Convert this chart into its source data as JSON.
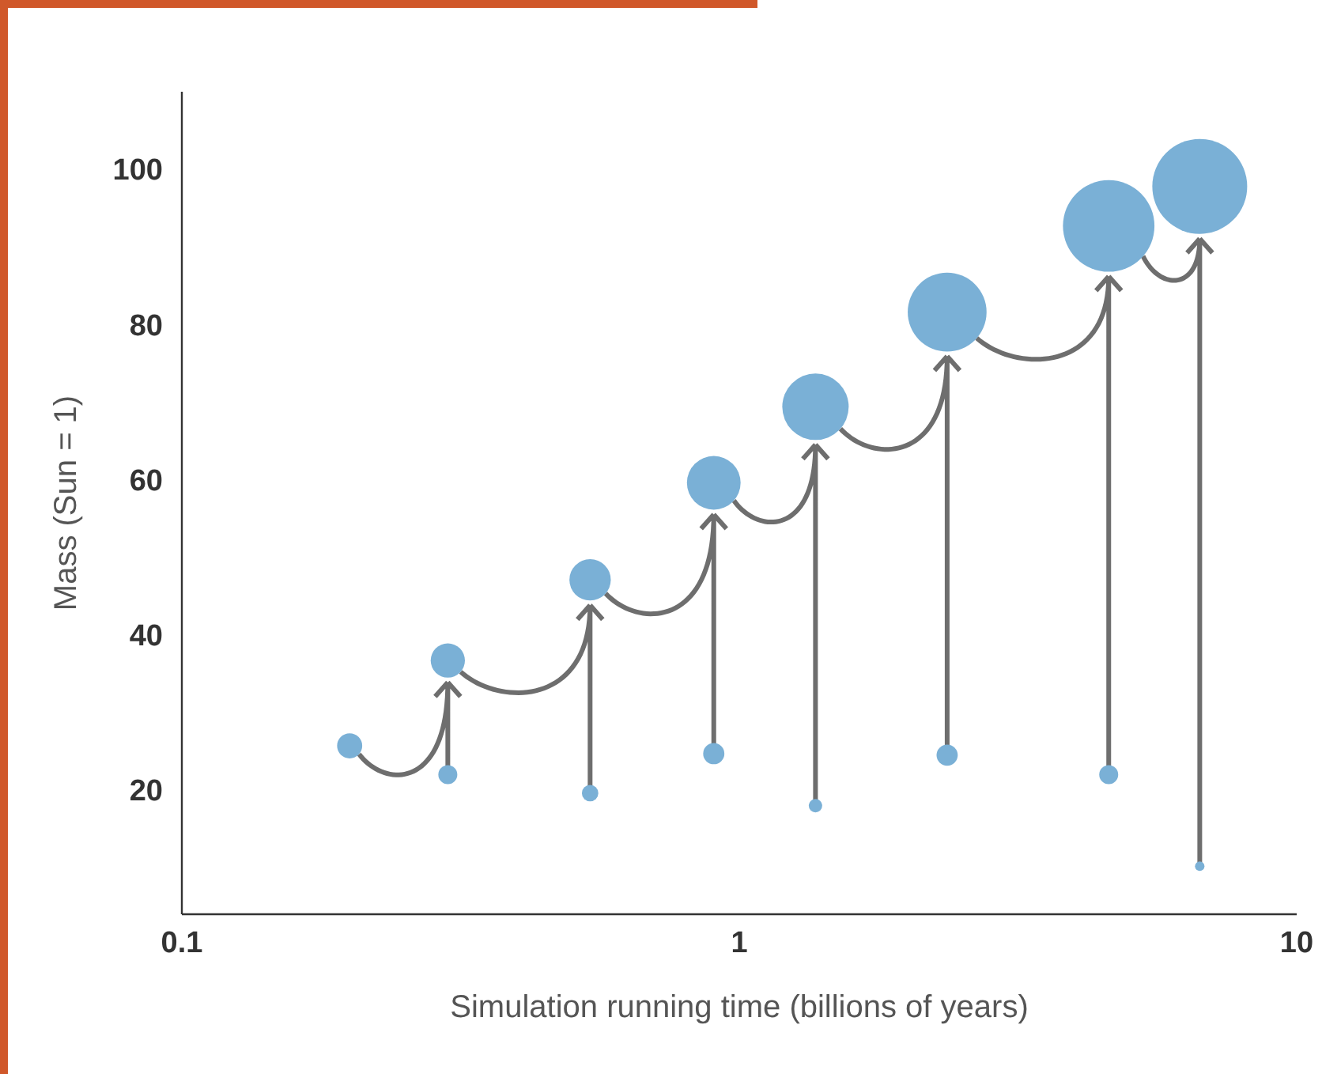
{
  "chart_data": {
    "type": "bubble",
    "xlabel": "Simulation running time (billions of years)",
    "ylabel": "Mass (Sun = 1)",
    "log": "x",
    "xlim": [
      0.1,
      10
    ],
    "ylim": [
      4,
      110
    ],
    "xticks": [
      0.1,
      1,
      10
    ],
    "yticks": [
      20,
      40,
      60,
      80,
      100
    ],
    "series": [
      {
        "color": "#7ab0d6",
        "x": [
          0.2,
          0.3,
          0.54,
          0.9,
          1.37,
          2.36,
          4.6,
          6.7
        ],
        "values": [
          25.7,
          36.7,
          47.1,
          59.6,
          69.4,
          81.6,
          92.7,
          97.8
        ],
        "sizes": [
          0.07,
          0.13,
          0.19,
          0.32,
          0.49,
          0.69,
          0.93,
          1
        ]
      },
      {
        "color": "#7ab0d6",
        "x": [
          0.3,
          0.54,
          0.9,
          1.37,
          2.36,
          4.6,
          6.7
        ],
        "values": [
          22,
          19.6,
          24.7,
          18,
          24.5,
          22,
          10.2
        ],
        "sizes": [
          0.04,
          0.03,
          0.05,
          0.02,
          0.05,
          0.04,
          0.01
        ]
      }
    ]
  }
}
